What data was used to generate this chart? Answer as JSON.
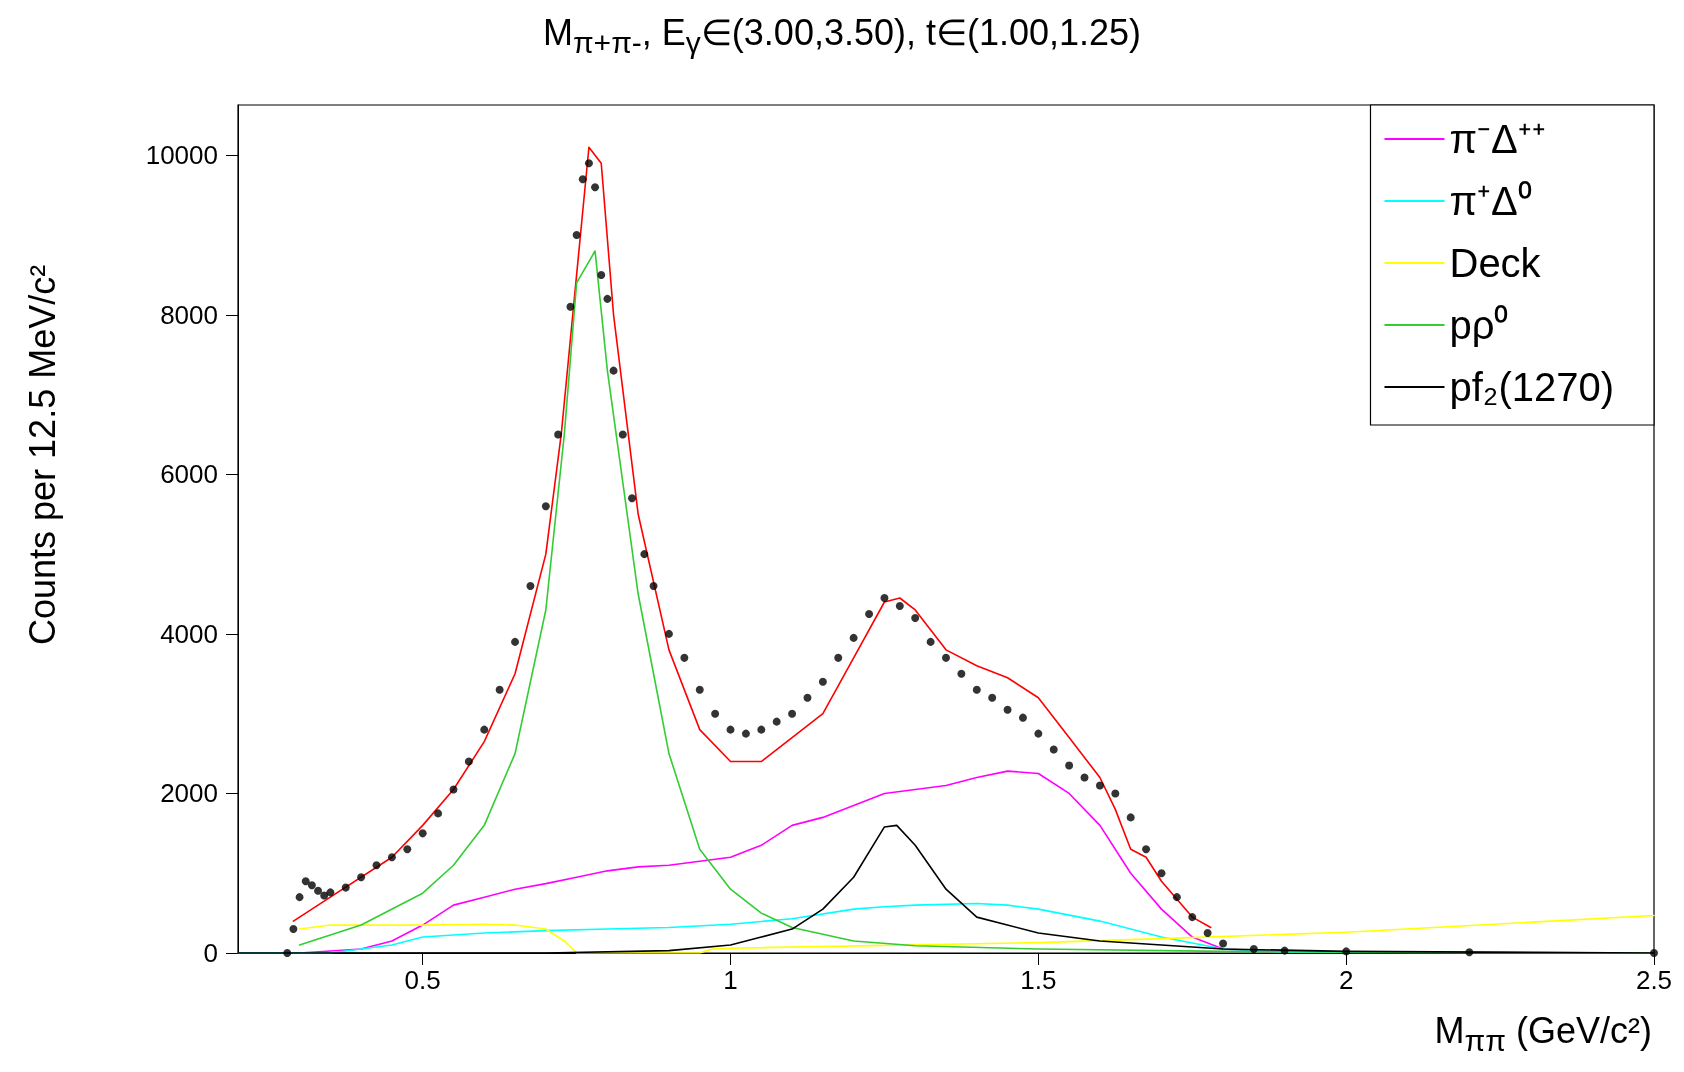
{
  "chart_data": {
    "type": "line",
    "title": "M$_{π+π-}$, E$_{γ}$∈(3.00,3.50), t∈(1.00,1.25)",
    "xlabel": "M$_{ππ}$ (GeV/c²)",
    "ylabel": "Counts per 12.5 MeV/c²",
    "xlim": [
      0.2,
      2.5
    ],
    "xticks": [
      0.5,
      1,
      1.5,
      2,
      2.5
    ],
    "ylim": [
      0,
      10630
    ],
    "yticks": [
      0,
      2000,
      4000,
      6000,
      8000,
      10000
    ],
    "grid": false,
    "legend": "top right",
    "marker": "none",
    "series": [
      {
        "type": "scatter",
        "marker": "circle",
        "color": "#000000",
        "x": [
          0.28,
          0.29,
          0.3,
          0.31,
          0.32,
          0.33,
          0.34,
          0.35,
          0.375,
          0.4,
          0.425,
          0.45,
          0.475,
          0.5,
          0.525,
          0.55,
          0.575,
          0.6,
          0.625,
          0.65,
          0.675,
          0.7,
          0.72,
          0.74,
          0.75,
          0.76,
          0.77,
          0.78,
          0.79,
          0.8,
          0.81,
          0.825,
          0.84,
          0.86,
          0.875,
          0.9,
          0.925,
          0.95,
          0.975,
          1.0,
          1.025,
          1.05,
          1.075,
          1.1,
          1.125,
          1.15,
          1.175,
          1.2,
          1.225,
          1.25,
          1.275,
          1.3,
          1.325,
          1.35,
          1.375,
          1.4,
          1.425,
          1.45,
          1.475,
          1.5,
          1.525,
          1.55,
          1.575,
          1.6,
          1.625,
          1.65,
          1.675,
          1.7,
          1.725,
          1.75,
          1.775,
          1.8,
          1.85,
          1.9,
          2.0,
          2.2,
          2.5
        ],
        "values": [
          0,
          300,
          700,
          900,
          850,
          780,
          720,
          760,
          820,
          950,
          1100,
          1200,
          1300,
          1500,
          1750,
          2050,
          2400,
          2800,
          3300,
          3900,
          4600,
          5600,
          6500,
          8100,
          9000,
          9700,
          9900,
          9600,
          8500,
          8200,
          7300,
          6500,
          5700,
          5000,
          4600,
          4000,
          3700,
          3300,
          3000,
          2800,
          2750,
          2800,
          2900,
          3000,
          3200,
          3400,
          3700,
          3950,
          4250,
          4450,
          4350,
          4200,
          3900,
          3700,
          3500,
          3300,
          3200,
          3050,
          2950,
          2750,
          2550,
          2350,
          2200,
          2100,
          2000,
          1700,
          1300,
          1000,
          700,
          450,
          250,
          120,
          50,
          30,
          20,
          10,
          0
        ]
      },
      {
        "color": "#ff0000",
        "x": [
          0.29,
          0.35,
          0.45,
          0.5,
          0.55,
          0.6,
          0.65,
          0.7,
          0.725,
          0.75,
          0.77,
          0.79,
          0.81,
          0.85,
          0.9,
          0.95,
          1.0,
          1.05,
          1.1,
          1.15,
          1.2,
          1.25,
          1.275,
          1.3,
          1.35,
          1.4,
          1.45,
          1.5,
          1.55,
          1.6,
          1.625,
          1.65,
          1.675,
          1.7,
          1.75,
          1.78
        ],
        "values": [
          400,
          700,
          1200,
          1600,
          2050,
          2650,
          3500,
          5000,
          6500,
          8500,
          10100,
          9900,
          8000,
          5500,
          3800,
          2800,
          2400,
          2400,
          2700,
          3000,
          3700,
          4400,
          4450,
          4300,
          3800,
          3600,
          3450,
          3200,
          2700,
          2200,
          1800,
          1300,
          1200,
          900,
          450,
          320
        ]
      },
      {
        "name": "π⁻Δ⁺⁺",
        "color": "#ff00ff",
        "x": [
          0.3,
          0.4,
          0.45,
          0.5,
          0.55,
          0.6,
          0.65,
          0.7,
          0.75,
          0.8,
          0.85,
          0.9,
          0.95,
          1.0,
          1.05,
          1.1,
          1.15,
          1.2,
          1.25,
          1.3,
          1.35,
          1.4,
          1.45,
          1.5,
          1.55,
          1.6,
          1.65,
          1.7,
          1.75,
          1.8,
          1.9,
          2.5
        ],
        "values": [
          0,
          50,
          150,
          350,
          600,
          700,
          800,
          870,
          950,
          1030,
          1080,
          1100,
          1150,
          1200,
          1350,
          1600,
          1700,
          1850,
          2000,
          2050,
          2100,
          2200,
          2280,
          2250,
          2000,
          1600,
          1000,
          550,
          200,
          50,
          10,
          0
        ]
      },
      {
        "name": "π⁺Δ⁰",
        "color": "#00ffff",
        "x": [
          0.2,
          0.35,
          0.45,
          0.5,
          0.6,
          0.7,
          0.8,
          0.9,
          1.0,
          1.1,
          1.2,
          1.25,
          1.3,
          1.4,
          1.45,
          1.5,
          1.6,
          1.7,
          1.8,
          1.9,
          2.5
        ],
        "values": [
          0,
          0,
          100,
          200,
          250,
          280,
          300,
          320,
          360,
          430,
          550,
          580,
          600,
          620,
          600,
          550,
          400,
          200,
          50,
          10,
          0
        ]
      },
      {
        "name": "Deck",
        "color": "#ffff00",
        "x": [
          0.3,
          0.35,
          0.5,
          0.6,
          0.65,
          0.7,
          0.73,
          0.75,
          0.95,
          0.97,
          1.0,
          1.5,
          1.7,
          2.0,
          2.5
        ],
        "values": [
          300,
          350,
          350,
          360,
          350,
          300,
          150,
          0,
          0,
          50,
          60,
          130,
          180,
          260,
          470
        ]
      },
      {
        "name": "pρ⁰",
        "color": "#33cc33",
        "x": [
          0.3,
          0.4,
          0.5,
          0.55,
          0.6,
          0.65,
          0.7,
          0.73,
          0.75,
          0.78,
          0.8,
          0.85,
          0.9,
          0.95,
          1.0,
          1.05,
          1.1,
          1.2,
          1.3,
          1.5,
          1.8,
          2.5
        ],
        "values": [
          100,
          350,
          750,
          1100,
          1600,
          2500,
          4300,
          6500,
          8400,
          8800,
          7300,
          4500,
          2500,
          1300,
          800,
          500,
          320,
          150,
          90,
          50,
          20,
          0
        ]
      },
      {
        "name": "pf₂(1270)",
        "color": "#000000",
        "x": [
          0.2,
          0.7,
          0.9,
          1.0,
          1.05,
          1.1,
          1.15,
          1.2,
          1.25,
          1.27,
          1.3,
          1.35,
          1.4,
          1.5,
          1.6,
          1.7,
          1.8,
          2.0,
          2.5
        ],
        "values": [
          0,
          0,
          30,
          100,
          200,
          300,
          550,
          950,
          1580,
          1600,
          1350,
          800,
          450,
          250,
          150,
          100,
          50,
          20,
          0
        ]
      }
    ]
  }
}
